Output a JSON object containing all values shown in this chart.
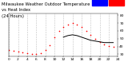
{
  "title_left": "Milwaukee Weather Outdoor Temperature",
  "title_right": "vs Heat Index",
  "title_sub": "(24 Hours)",
  "title_fontsize": 3.8,
  "bg_color": "#ffffff",
  "plot_bg_color": "#ffffff",
  "grid_color": "#c0c0c0",
  "tick_fontsize": 3.2,
  "ylim": [
    27,
    82
  ],
  "xlim": [
    0,
    24
  ],
  "yticks": [
    30,
    40,
    50,
    60,
    70,
    80
  ],
  "xticks": [
    0,
    2,
    4,
    6,
    8,
    10,
    12,
    14,
    16,
    18,
    20,
    22,
    24
  ],
  "temp_x": [
    0,
    1,
    2,
    3,
    4,
    5,
    6,
    7,
    8,
    9,
    10,
    11,
    12,
    13,
    14,
    15,
    16,
    17,
    18,
    19,
    20,
    21,
    22,
    23
  ],
  "temp_y": [
    36,
    34,
    33,
    32,
    31,
    30,
    30,
    31,
    35,
    42,
    52,
    60,
    65,
    68,
    70,
    68,
    65,
    60,
    55,
    50,
    46,
    43,
    41,
    40
  ],
  "heat_index_x": [
    12,
    13,
    14,
    15,
    16,
    17,
    18,
    19,
    20,
    21,
    22,
    23
  ],
  "heat_index_y": [
    52,
    54,
    55,
    54,
    52,
    50,
    48,
    47,
    46,
    45,
    45,
    45
  ],
  "temp_color": "#ff0000",
  "heat_color": "#000000",
  "legend_temp_color": "#0000ff",
  "legend_heat_color": "#ff0000",
  "dot_size": 1.2,
  "line_width": 0.7
}
